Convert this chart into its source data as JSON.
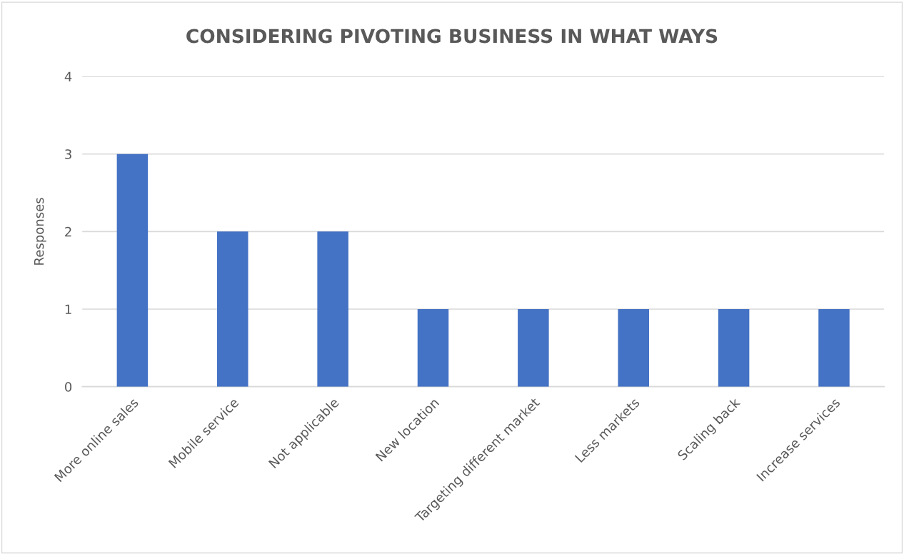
{
  "chart_data": {
    "type": "bar",
    "title": "CONSIDERING PIVOTING BUSINESS IN WHAT WAYS",
    "ylabel": "Responses",
    "categories": [
      "More online sales",
      "Mobile service",
      "Not applicable",
      "New location",
      "Targeting different market",
      "Less markets",
      "Scaling back",
      "Increase services"
    ],
    "values": [
      3,
      2,
      2,
      1,
      1,
      1,
      1,
      1
    ],
    "color": "#4472c4",
    "ylim": [
      0,
      4
    ],
    "yticks": [
      0,
      1,
      2,
      3,
      4
    ],
    "grid": "y",
    "legend": false
  }
}
